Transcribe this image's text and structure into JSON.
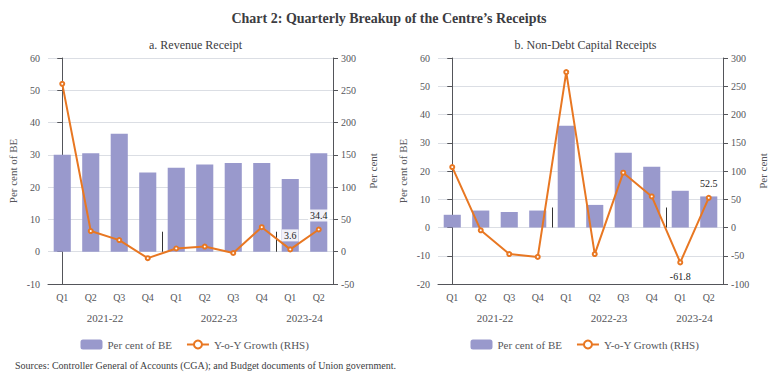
{
  "title": "Chart 2: Quarterly Breakup of the Centre’s Receipts",
  "source": "Sources: Controller General of Accounts (CGA); and Budget documents of Union government.",
  "chart_data": [
    {
      "type": "bar",
      "title": "a. Revenue Receipt",
      "categories": [
        "Q1",
        "Q2",
        "Q3",
        "Q4",
        "Q1",
        "Q2",
        "Q3",
        "Q4",
        "Q1",
        "Q2"
      ],
      "x_groups": [
        "2021-22",
        "2021-22",
        "2021-22",
        "2021-22",
        "2022-23",
        "2022-23",
        "2022-23",
        "2022-23",
        "2023-24",
        "2023-24"
      ],
      "ylabel": "Per cent of BE",
      "y2label": "Per cent",
      "ylim": [
        -10,
        60
      ],
      "yticks": [
        -10,
        0,
        10,
        20,
        30,
        40,
        50,
        60
      ],
      "y2lim": [
        -50,
        300
      ],
      "y2ticks": [
        -50,
        0,
        50,
        100,
        150,
        200,
        250,
        300
      ],
      "grid": true,
      "legend": "bottom",
      "series": [
        {
          "name": "Per cent of BE",
          "type": "bar",
          "color": "#9999CC",
          "values": [
            30,
            30.5,
            36.5,
            24.5,
            26,
            27,
            27.5,
            27.5,
            22.5,
            30.5
          ]
        },
        {
          "name": "Y-o-Y Growth (RHS)",
          "type": "line",
          "color": "#E87722",
          "axis": "y2",
          "values": [
            260,
            32,
            18,
            -10,
            5,
            8,
            -2,
            38,
            3.6,
            34.4
          ],
          "value_labels": [
            null,
            null,
            null,
            null,
            null,
            null,
            null,
            null,
            "3.6",
            "34.4"
          ]
        }
      ]
    },
    {
      "type": "bar",
      "title": "b. Non-Debt Capital Receipts",
      "categories": [
        "Q1",
        "Q2",
        "Q3",
        "Q4",
        "Q1",
        "Q2",
        "Q3",
        "Q4",
        "Q1",
        "Q2"
      ],
      "x_groups": [
        "2021-22",
        "2021-22",
        "2021-22",
        "2021-22",
        "2022-23",
        "2022-23",
        "2022-23",
        "2022-23",
        "2023-24",
        "2023-24"
      ],
      "ylabel": "Per cent of BE",
      "y2label": "Per cent",
      "ylim": [
        -20,
        60
      ],
      "yticks": [
        -20,
        -10,
        0,
        10,
        20,
        30,
        40,
        50,
        60
      ],
      "y2lim": [
        -100,
        300
      ],
      "y2ticks": [
        -100,
        -50,
        0,
        50,
        100,
        150,
        200,
        250,
        300
      ],
      "grid": true,
      "legend": "bottom",
      "series": [
        {
          "name": "Per cent of BE",
          "type": "bar",
          "color": "#9999CC",
          "values": [
            4.5,
            6.0,
            5.5,
            6.0,
            36.0,
            8.0,
            26.5,
            21.5,
            13.0,
            11.0
          ]
        },
        {
          "name": "Y-o-Y Growth (RHS)",
          "type": "line",
          "color": "#E87722",
          "axis": "y2",
          "values": [
            107,
            -5,
            -47,
            -52,
            275,
            -47,
            97,
            55,
            -61.8,
            52.5
          ],
          "value_labels": [
            null,
            null,
            null,
            null,
            null,
            null,
            null,
            null,
            "-61.8",
            "52.5"
          ]
        }
      ]
    }
  ]
}
